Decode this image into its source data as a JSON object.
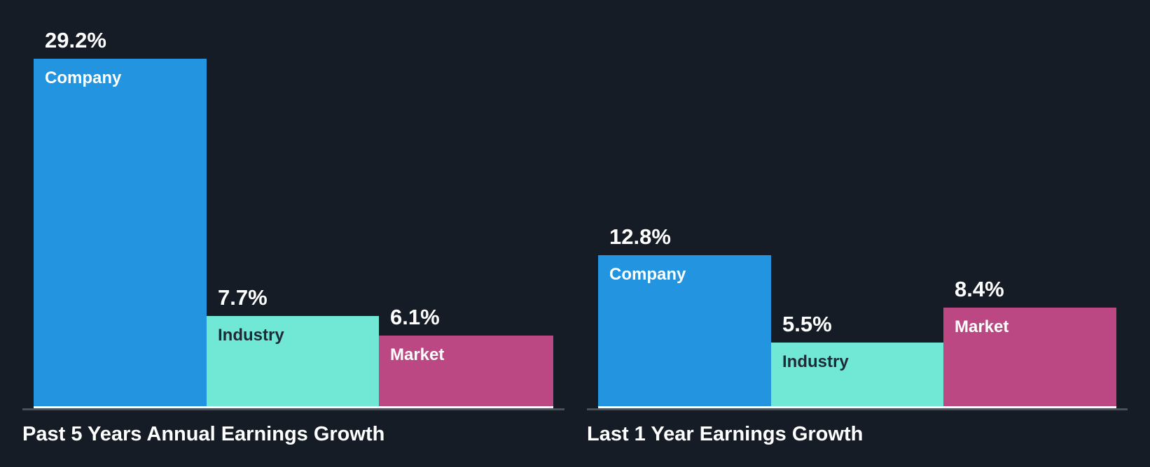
{
  "colors": {
    "background": "#161c25",
    "company": "#2394df",
    "industry": "#71e7d6",
    "market": "#bb4883",
    "axis": "#4a5059",
    "text_light": "#ffffff",
    "text_dark": "#1e2a36"
  },
  "panels": [
    {
      "title": "Past 5 Years Annual Earnings Growth",
      "bars": [
        {
          "label": "Company",
          "value": 29.2,
          "display": "29.2%"
        },
        {
          "label": "Industry",
          "value": 7.7,
          "display": "7.7%"
        },
        {
          "label": "Market",
          "value": 6.1,
          "display": "6.1%"
        }
      ]
    },
    {
      "title": "Last 1 Year Earnings Growth",
      "bars": [
        {
          "label": "Company",
          "value": 12.8,
          "display": "12.8%"
        },
        {
          "label": "Industry",
          "value": 5.5,
          "display": "5.5%"
        },
        {
          "label": "Market",
          "value": 8.4,
          "display": "8.4%"
        }
      ]
    }
  ],
  "chart_data": [
    {
      "type": "bar",
      "title": "Past 5 Years Annual Earnings Growth",
      "categories": [
        "Company",
        "Industry",
        "Market"
      ],
      "values": [
        29.2,
        7.7,
        6.1
      ],
      "unit": "%",
      "xlabel": "",
      "ylabel": "",
      "grid": false,
      "legend": "none (labels inside bars)"
    },
    {
      "type": "bar",
      "title": "Last 1 Year Earnings Growth",
      "categories": [
        "Company",
        "Industry",
        "Market"
      ],
      "values": [
        12.8,
        5.5,
        8.4
      ],
      "unit": "%",
      "xlabel": "",
      "ylabel": "",
      "grid": false,
      "legend": "none (labels inside bars)"
    }
  ]
}
